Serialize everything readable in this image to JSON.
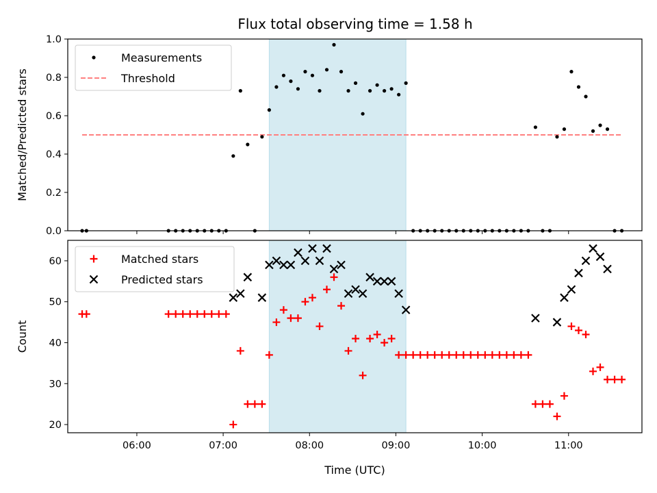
{
  "chart_data": [
    {
      "type": "scatter",
      "title": "Flux total observing time = 1.58 h",
      "xlabel": "",
      "ylabel": "Matched/Predicted stars",
      "xlim": [
        "05:12",
        "11:51"
      ],
      "ylim": [
        0,
        1.0
      ],
      "yticks": [
        0.0,
        0.2,
        0.4,
        0.6,
        0.8,
        1.0
      ],
      "yticklabels": [
        "0.0",
        "0.2",
        "0.4",
        "0.6",
        "0.8",
        "1.0"
      ],
      "shaded_interval": [
        "07:32",
        "09:07"
      ],
      "shade_color": "#add8e6",
      "legend": {
        "placement": "upper-left",
        "entries": [
          "Measurements",
          "Threshold"
        ]
      },
      "threshold": {
        "name": "Threshold",
        "value": 0.5,
        "x": [
          "05:22",
          "11:37"
        ],
        "color": "#ff7f7f",
        "style": "dashed"
      },
      "series": [
        {
          "name": "Measurements",
          "marker": "dot",
          "color": "#000000",
          "points": [
            [
              "05:22",
              0.0
            ],
            [
              "05:25",
              0.0
            ],
            [
              "06:22",
              0.0
            ],
            [
              "06:27",
              0.0
            ],
            [
              "06:32",
              0.0
            ],
            [
              "06:37",
              0.0
            ],
            [
              "06:42",
              0.0
            ],
            [
              "06:47",
              0.0
            ],
            [
              "06:52",
              0.0
            ],
            [
              "06:57",
              0.0
            ],
            [
              "07:02",
              0.0
            ],
            [
              "07:07",
              0.39
            ],
            [
              "07:12",
              0.73
            ],
            [
              "07:17",
              0.45
            ],
            [
              "07:22",
              0.0
            ],
            [
              "07:27",
              0.49
            ],
            [
              "07:32",
              0.63
            ],
            [
              "07:37",
              0.75
            ],
            [
              "07:42",
              0.81
            ],
            [
              "07:47",
              0.78
            ],
            [
              "07:52",
              0.74
            ],
            [
              "07:57",
              0.83
            ],
            [
              "08:02",
              0.81
            ],
            [
              "08:07",
              0.73
            ],
            [
              "08:12",
              0.84
            ],
            [
              "08:17",
              0.97
            ],
            [
              "08:22",
              0.83
            ],
            [
              "08:27",
              0.73
            ],
            [
              "08:32",
              0.77
            ],
            [
              "08:37",
              0.61
            ],
            [
              "08:42",
              0.73
            ],
            [
              "08:47",
              0.76
            ],
            [
              "08:52",
              0.73
            ],
            [
              "08:57",
              0.74
            ],
            [
              "09:02",
              0.71
            ],
            [
              "09:07",
              0.77
            ],
            [
              "09:12",
              0.0
            ],
            [
              "09:17",
              0.0
            ],
            [
              "09:22",
              0.0
            ],
            [
              "09:27",
              0.0
            ],
            [
              "09:32",
              0.0
            ],
            [
              "09:37",
              0.0
            ],
            [
              "09:42",
              0.0
            ],
            [
              "09:47",
              0.0
            ],
            [
              "09:52",
              0.0
            ],
            [
              "09:57",
              0.0
            ],
            [
              "10:02",
              0.0
            ],
            [
              "10:07",
              0.0
            ],
            [
              "10:12",
              0.0
            ],
            [
              "10:17",
              0.0
            ],
            [
              "10:22",
              0.0
            ],
            [
              "10:27",
              0.0
            ],
            [
              "10:32",
              0.0
            ],
            [
              "10:37",
              0.54
            ],
            [
              "10:42",
              0.0
            ],
            [
              "10:47",
              0.0
            ],
            [
              "10:52",
              0.49
            ],
            [
              "10:57",
              0.53
            ],
            [
              "11:02",
              0.83
            ],
            [
              "11:07",
              0.75
            ],
            [
              "11:12",
              0.7
            ],
            [
              "11:17",
              0.52
            ],
            [
              "11:22",
              0.55
            ],
            [
              "11:27",
              0.53
            ],
            [
              "11:32",
              0.0
            ],
            [
              "11:37",
              0.0
            ]
          ]
        }
      ]
    },
    {
      "type": "scatter",
      "title": "",
      "xlabel": "Time (UTC)",
      "ylabel": "Count",
      "xlim": [
        "05:12",
        "11:51"
      ],
      "ylim": [
        18,
        65
      ],
      "yticks": [
        20,
        30,
        40,
        50,
        60
      ],
      "yticklabels": [
        "20",
        "30",
        "40",
        "50",
        "60"
      ],
      "xticks": [
        "06:00",
        "07:00",
        "08:00",
        "09:00",
        "10:00",
        "11:00"
      ],
      "xticklabels": [
        "06:00",
        "07:00",
        "08:00",
        "09:00",
        "10:00",
        "11:00"
      ],
      "shaded_interval": [
        "07:32",
        "09:07"
      ],
      "shade_color": "#add8e6",
      "legend": {
        "placement": "upper-left",
        "entries": [
          "Matched stars",
          "Predicted stars"
        ]
      },
      "series": [
        {
          "name": "Matched stars",
          "marker": "plus",
          "color": "#ff0000",
          "points": [
            [
              "05:22",
              47
            ],
            [
              "05:25",
              47
            ],
            [
              "06:22",
              47
            ],
            [
              "06:27",
              47
            ],
            [
              "06:32",
              47
            ],
            [
              "06:37",
              47
            ],
            [
              "06:42",
              47
            ],
            [
              "06:47",
              47
            ],
            [
              "06:52",
              47
            ],
            [
              "06:57",
              47
            ],
            [
              "07:02",
              47
            ],
            [
              "07:07",
              20
            ],
            [
              "07:12",
              38
            ],
            [
              "07:17",
              25
            ],
            [
              "07:22",
              25
            ],
            [
              "07:27",
              25
            ],
            [
              "07:32",
              37
            ],
            [
              "07:37",
              45
            ],
            [
              "07:42",
              48
            ],
            [
              "07:47",
              46
            ],
            [
              "07:52",
              46
            ],
            [
              "07:57",
              50
            ],
            [
              "08:02",
              51
            ],
            [
              "08:07",
              44
            ],
            [
              "08:12",
              53
            ],
            [
              "08:17",
              56
            ],
            [
              "08:22",
              49
            ],
            [
              "08:27",
              38
            ],
            [
              "08:32",
              41
            ],
            [
              "08:37",
              32
            ],
            [
              "08:42",
              41
            ],
            [
              "08:47",
              42
            ],
            [
              "08:52",
              40
            ],
            [
              "08:57",
              41
            ],
            [
              "09:02",
              37
            ],
            [
              "09:07",
              37
            ],
            [
              "09:12",
              37
            ],
            [
              "09:17",
              37
            ],
            [
              "09:22",
              37
            ],
            [
              "09:27",
              37
            ],
            [
              "09:32",
              37
            ],
            [
              "09:37",
              37
            ],
            [
              "09:42",
              37
            ],
            [
              "09:47",
              37
            ],
            [
              "09:52",
              37
            ],
            [
              "09:57",
              37
            ],
            [
              "10:02",
              37
            ],
            [
              "10:07",
              37
            ],
            [
              "10:12",
              37
            ],
            [
              "10:17",
              37
            ],
            [
              "10:22",
              37
            ],
            [
              "10:27",
              37
            ],
            [
              "10:32",
              37
            ],
            [
              "10:37",
              25
            ],
            [
              "10:42",
              25
            ],
            [
              "10:47",
              25
            ],
            [
              "10:52",
              22
            ],
            [
              "10:57",
              27
            ],
            [
              "11:02",
              44
            ],
            [
              "11:07",
              43
            ],
            [
              "11:12",
              42
            ],
            [
              "11:17",
              33
            ],
            [
              "11:22",
              34
            ],
            [
              "11:27",
              31
            ],
            [
              "11:32",
              31
            ],
            [
              "11:37",
              31
            ]
          ]
        },
        {
          "name": "Predicted stars",
          "marker": "x",
          "color": "#000000",
          "points": [
            [
              "07:07",
              51
            ],
            [
              "07:12",
              52
            ],
            [
              "07:17",
              56
            ],
            [
              "07:27",
              51
            ],
            [
              "07:32",
              59
            ],
            [
              "07:37",
              60
            ],
            [
              "07:42",
              59
            ],
            [
              "07:47",
              59
            ],
            [
              "07:52",
              62
            ],
            [
              "07:57",
              60
            ],
            [
              "08:02",
              63
            ],
            [
              "08:07",
              60
            ],
            [
              "08:12",
              63
            ],
            [
              "08:17",
              58
            ],
            [
              "08:22",
              59
            ],
            [
              "08:27",
              52
            ],
            [
              "08:32",
              53
            ],
            [
              "08:37",
              52
            ],
            [
              "08:42",
              56
            ],
            [
              "08:47",
              55
            ],
            [
              "08:52",
              55
            ],
            [
              "08:57",
              55
            ],
            [
              "09:02",
              52
            ],
            [
              "09:07",
              48
            ],
            [
              "10:37",
              46
            ],
            [
              "10:52",
              45
            ],
            [
              "10:57",
              51
            ],
            [
              "11:02",
              53
            ],
            [
              "11:07",
              57
            ],
            [
              "11:12",
              60
            ],
            [
              "11:17",
              63
            ],
            [
              "11:22",
              61
            ],
            [
              "11:27",
              58
            ]
          ]
        }
      ]
    }
  ]
}
